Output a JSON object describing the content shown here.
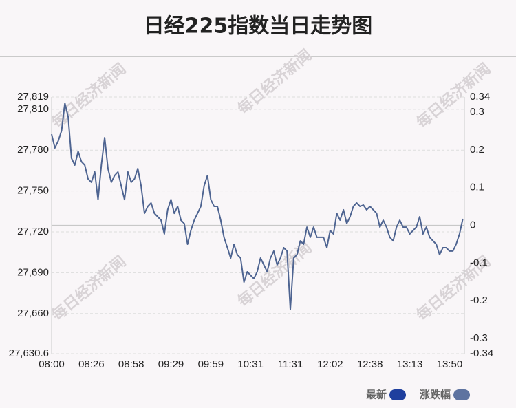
{
  "chart_data": {
    "type": "line",
    "title": "日经225指数当日走势图",
    "watermark": "每日经济新闻",
    "categories": [
      "08:00",
      null,
      null,
      null,
      null,
      null,
      null,
      null,
      null,
      null,
      null,
      null,
      "08:26",
      null,
      null,
      null,
      null,
      null,
      null,
      null,
      null,
      null,
      null,
      null,
      "08:58",
      null,
      null,
      null,
      null,
      null,
      null,
      null,
      null,
      null,
      null,
      null,
      "09:29",
      null,
      null,
      null,
      null,
      null,
      null,
      null,
      null,
      null,
      null,
      null,
      "09:59",
      null,
      null,
      null,
      null,
      null,
      null,
      null,
      null,
      null,
      null,
      null,
      "10:31",
      null,
      null,
      null,
      null,
      null,
      null,
      null,
      null,
      null,
      null,
      null,
      "11:31",
      null,
      null,
      null,
      null,
      null,
      null,
      null,
      null,
      null,
      null,
      null,
      "12:02",
      null,
      null,
      null,
      null,
      null,
      null,
      null,
      null,
      null,
      null,
      null,
      "12:38",
      null,
      null,
      null,
      null,
      null,
      null,
      null,
      null,
      null,
      null,
      null,
      "13:13",
      null,
      null,
      null,
      null,
      null,
      null,
      null,
      null,
      null,
      null,
      null,
      "13:50",
      null,
      null,
      null,
      null
    ],
    "series": [
      {
        "name": "最新",
        "color": "#4e6491",
        "values": [
          27791.7,
          27781.6,
          27786.7,
          27794.3,
          27814.5,
          27804.4,
          27774.1,
          27769.0,
          27779.1,
          27771.5,
          27769.0,
          27758.9,
          27756.4,
          27764.0,
          27743.7,
          27769.0,
          27789.2,
          27766.5,
          27756.4,
          27761.4,
          27764.0,
          27753.8,
          27743.7,
          27764.0,
          27756.4,
          27758.9,
          27766.5,
          27753.8,
          27733.6,
          27738.7,
          27741.2,
          27733.6,
          27731.1,
          27728.6,
          27718.5,
          27736.2,
          27743.7,
          27733.6,
          27738.7,
          27728.6,
          27726.1,
          27710.9,
          27721.0,
          27728.6,
          27733.6,
          27738.7,
          27753.8,
          27761.4,
          27743.7,
          27738.7,
          27738.7,
          27728.6,
          27716.0,
          27708.4,
          27700.8,
          27710.9,
          27703.3,
          27700.8,
          27683.1,
          27690.7,
          27688.2,
          27685.7,
          27690.7,
          27700.8,
          27695.8,
          27690.7,
          27700.8,
          27705.9,
          27695.8,
          27700.8,
          27708.4,
          27705.9,
          27663.0,
          27700.8,
          27703.3,
          27713.4,
          27710.9,
          27723.5,
          27716.0,
          27723.5,
          27716.0,
          27716.0,
          27716.0,
          27708.4,
          27721.0,
          27718.5,
          27733.6,
          27728.6,
          27736.2,
          27726.1,
          27731.1,
          27738.7,
          27741.2,
          27738.7,
          27739.7,
          27736.2,
          27738.7,
          27736.2,
          27733.6,
          27723.5,
          27728.6,
          27723.5,
          27716.0,
          27713.4,
          27723.5,
          27728.6,
          27723.5,
          27723.5,
          27718.5,
          27721.0,
          27723.5,
          27731.1,
          27718.5,
          27723.5,
          27716.0,
          27713.4,
          27710.9,
          27703.3,
          27708.4,
          27708.4,
          27705.9,
          27705.9,
          27710.9,
          27718.5,
          27729.6
        ]
      }
    ],
    "legend": [
      {
        "name": "最新",
        "color": "#1f3f9e"
      },
      {
        "name": "涨跌幅",
        "color": "#5e73a0"
      }
    ],
    "ylim": [
      27630.6,
      27819
    ],
    "yticks": [
      {
        "value": 27630.6,
        "label": "27,630.6"
      },
      {
        "value": 27660,
        "label": "27,660"
      },
      {
        "value": 27690,
        "label": "27,690"
      },
      {
        "value": 27720,
        "label": "27,720"
      },
      {
        "value": 27750,
        "label": "27,750"
      },
      {
        "value": 27780,
        "label": "27,780"
      },
      {
        "value": 27810,
        "label": "27,810"
      },
      {
        "value": 27819,
        "label": "27,819"
      }
    ],
    "y2lim": [
      -0.34,
      0.34
    ],
    "y2ticks": [
      -0.34,
      -0.3,
      -0.2,
      -0.1,
      0,
      0.1,
      0.2,
      0.3,
      0.34
    ],
    "grid": true
  }
}
